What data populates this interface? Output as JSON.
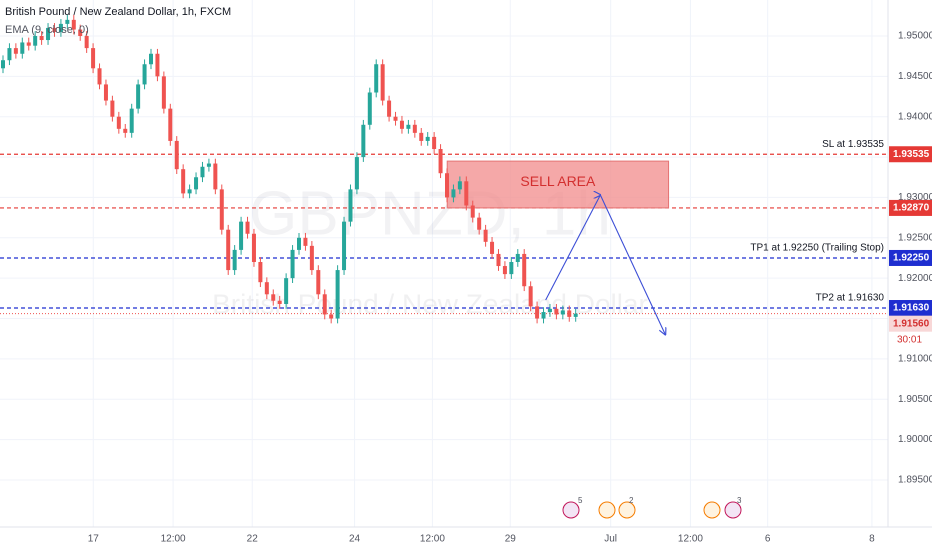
{
  "chart_data": {
    "type": "candlestick",
    "title": "British Pound / New Zealand Dollar, 1h, FXCM",
    "indicator": "EMA (9, close, 0)",
    "watermark": "GBPNZD, 1h",
    "watermark_subtitle": "British Pound / New Zealand Dollar",
    "xlim": [
      0,
      138
    ],
    "ylim": [
      1.88917,
      1.95446
    ],
    "xticks": [
      {
        "value": 14.5,
        "label": "17"
      },
      {
        "value": 26.9,
        "label": "12:00"
      },
      {
        "value": 39.2,
        "label": "22"
      },
      {
        "value": 55.1,
        "label": "24"
      },
      {
        "value": 67.2,
        "label": "12:00"
      },
      {
        "value": 79.3,
        "label": "29"
      },
      {
        "value": 94.9,
        "label": "Jul"
      },
      {
        "value": 107.3,
        "label": "12:00"
      },
      {
        "value": 119.3,
        "label": "6"
      },
      {
        "value": 135.5,
        "label": "8"
      }
    ],
    "yticks": [
      {
        "value": 1.95,
        "label": "1.95000"
      },
      {
        "value": 1.945,
        "label": "1.94500"
      },
      {
        "value": 1.94,
        "label": "1.94000"
      },
      {
        "value": 1.935,
        "label": "1.93500"
      },
      {
        "value": 1.93,
        "label": "1.93000"
      },
      {
        "value": 1.925,
        "label": "1.92500"
      },
      {
        "value": 1.92,
        "label": "1.92000"
      },
      {
        "value": 1.915,
        "label": "1.91500"
      },
      {
        "value": 1.91,
        "label": "1.91000"
      },
      {
        "value": 1.905,
        "label": "1.90500"
      },
      {
        "value": 1.9,
        "label": "1.90000"
      },
      {
        "value": 1.895,
        "label": "1.89500"
      }
    ],
    "grid": true,
    "up_color": "#26a69a",
    "down_color": "#ef5350",
    "candles": [
      [
        1.946,
        1.9476,
        1.9454,
        1.947
      ],
      [
        1.947,
        1.9491,
        1.9464,
        1.9485
      ],
      [
        1.9485,
        1.9491,
        1.9472,
        1.9478
      ],
      [
        1.9478,
        1.9498,
        1.9472,
        1.9492
      ],
      [
        1.9492,
        1.9498,
        1.9482,
        1.9488
      ],
      [
        1.9488,
        1.9506,
        1.9482,
        1.95
      ],
      [
        1.95,
        1.9506,
        1.9489,
        1.9495
      ],
      [
        1.9495,
        1.9516,
        1.9489,
        1.951
      ],
      [
        1.951,
        1.9516,
        1.9499,
        1.9505
      ],
      [
        1.9505,
        1.9521,
        1.9499,
        1.9515
      ],
      [
        1.9515,
        1.9526,
        1.9509,
        1.952
      ],
      [
        1.952,
        1.9526,
        1.9502,
        1.9508
      ],
      [
        1.9508,
        1.9514,
        1.9494,
        1.95
      ],
      [
        1.95,
        1.9506,
        1.9479,
        1.9485
      ],
      [
        1.9485,
        1.9491,
        1.9454,
        1.946
      ],
      [
        1.946,
        1.9466,
        1.9434,
        1.944
      ],
      [
        1.944,
        1.9446,
        1.9414,
        1.942
      ],
      [
        1.942,
        1.9426,
        1.9394,
        1.94
      ],
      [
        1.94,
        1.9406,
        1.9379,
        1.9385
      ],
      [
        1.9385,
        1.9391,
        1.9374,
        1.938
      ],
      [
        1.938,
        1.9416,
        1.9374,
        1.941
      ],
      [
        1.941,
        1.9446,
        1.9404,
        1.944
      ],
      [
        1.944,
        1.9471,
        1.9434,
        1.9465
      ],
      [
        1.9465,
        1.9484,
        1.9459,
        1.9478
      ],
      [
        1.9478,
        1.9484,
        1.9444,
        1.945
      ],
      [
        1.945,
        1.9456,
        1.9404,
        1.941
      ],
      [
        1.941,
        1.9416,
        1.9364,
        1.937
      ],
      [
        1.937,
        1.9376,
        1.9329,
        1.9335
      ],
      [
        1.9335,
        1.9341,
        1.9299,
        1.9305
      ],
      [
        1.9305,
        1.9316,
        1.9299,
        1.931
      ],
      [
        1.931,
        1.9331,
        1.9304,
        1.9325
      ],
      [
        1.9325,
        1.9344,
        1.9319,
        1.9338
      ],
      [
        1.9338,
        1.9348,
        1.9332,
        1.9342
      ],
      [
        1.9342,
        1.9348,
        1.9304,
        1.931
      ],
      [
        1.931,
        1.9316,
        1.9254,
        1.926
      ],
      [
        1.926,
        1.9266,
        1.9204,
        1.921
      ],
      [
        1.921,
        1.9241,
        1.9204,
        1.9235
      ],
      [
        1.9235,
        1.9276,
        1.9229,
        1.927
      ],
      [
        1.927,
        1.9276,
        1.9249,
        1.9255
      ],
      [
        1.9255,
        1.9261,
        1.9214,
        1.922
      ],
      [
        1.922,
        1.9226,
        1.9189,
        1.9195
      ],
      [
        1.9195,
        1.9201,
        1.9174,
        1.918
      ],
      [
        1.918,
        1.9186,
        1.9166,
        1.9172
      ],
      [
        1.9172,
        1.9178,
        1.9162,
        1.9168
      ],
      [
        1.9168,
        1.9206,
        1.9162,
        1.92
      ],
      [
        1.92,
        1.9241,
        1.9194,
        1.9235
      ],
      [
        1.9235,
        1.9256,
        1.9229,
        1.925
      ],
      [
        1.925,
        1.9256,
        1.9234,
        1.924
      ],
      [
        1.924,
        1.9246,
        1.9204,
        1.921
      ],
      [
        1.921,
        1.9216,
        1.9174,
        1.918
      ],
      [
        1.918,
        1.9186,
        1.9149,
        1.9155
      ],
      [
        1.9155,
        1.9161,
        1.9144,
        1.915
      ],
      [
        1.915,
        1.9216,
        1.9144,
        1.921
      ],
      [
        1.921,
        1.9276,
        1.9204,
        1.927
      ],
      [
        1.927,
        1.9316,
        1.9264,
        1.931
      ],
      [
        1.931,
        1.9356,
        1.9304,
        1.935
      ],
      [
        1.935,
        1.9396,
        1.9344,
        1.939
      ],
      [
        1.939,
        1.9436,
        1.9384,
        1.943
      ],
      [
        1.943,
        1.9471,
        1.9424,
        1.9465
      ],
      [
        1.9465,
        1.9471,
        1.9414,
        1.942
      ],
      [
        1.942,
        1.9426,
        1.9394,
        1.94
      ],
      [
        1.94,
        1.9406,
        1.9389,
        1.9395
      ],
      [
        1.9395,
        1.9401,
        1.9379,
        1.9385
      ],
      [
        1.9385,
        1.9396,
        1.9379,
        1.939
      ],
      [
        1.939,
        1.9396,
        1.9374,
        1.938
      ],
      [
        1.938,
        1.9386,
        1.9364,
        1.937
      ],
      [
        1.937,
        1.9381,
        1.9364,
        1.9375
      ],
      [
        1.9375,
        1.9381,
        1.9354,
        1.936
      ],
      [
        1.936,
        1.9366,
        1.9324,
        1.933
      ],
      [
        1.933,
        1.9336,
        1.9294,
        1.93
      ],
      [
        1.93,
        1.9316,
        1.9294,
        1.931
      ],
      [
        1.931,
        1.9326,
        1.9304,
        1.932
      ],
      [
        1.932,
        1.9326,
        1.9284,
        1.929
      ],
      [
        1.929,
        1.9296,
        1.9269,
        1.9275
      ],
      [
        1.9275,
        1.9281,
        1.9254,
        1.926
      ],
      [
        1.926,
        1.9266,
        1.9239,
        1.9245
      ],
      [
        1.9245,
        1.9251,
        1.9224,
        1.923
      ],
      [
        1.923,
        1.9236,
        1.9209,
        1.9215
      ],
      [
        1.9215,
        1.9221,
        1.9199,
        1.9205
      ],
      [
        1.9205,
        1.9226,
        1.9199,
        1.922
      ],
      [
        1.922,
        1.9236,
        1.9214,
        1.923
      ],
      [
        1.923,
        1.9236,
        1.9184,
        1.919
      ],
      [
        1.919,
        1.9196,
        1.9159,
        1.9165
      ],
      [
        1.9165,
        1.9171,
        1.9144,
        1.915
      ],
      [
        1.915,
        1.9164,
        1.9144,
        1.9158
      ],
      [
        1.9158,
        1.9168,
        1.9152,
        1.9162
      ],
      [
        1.9162,
        1.9168,
        1.9149,
        1.9155
      ],
      [
        1.9155,
        1.9166,
        1.9149,
        1.916
      ],
      [
        1.916,
        1.9166,
        1.9146,
        1.9152
      ],
      [
        1.9152,
        1.9162,
        1.9146,
        1.9156
      ]
    ],
    "levels": [
      {
        "price": 1.93535,
        "text": "SL at 1.93535",
        "color": "#e53935"
      },
      {
        "price": 1.9287,
        "price_label": "1.92870",
        "color": "#e53935"
      },
      {
        "price": 1.9225,
        "price_label": "1.92250",
        "text": "TP1 at 1.92250 (Trailing Stop)",
        "color": "#1e2ed0"
      },
      {
        "price": 1.9163,
        "price_label": "1.91630",
        "text": "TP2 at 1.91630",
        "color": "#1e2ed0"
      }
    ],
    "last_price": {
      "price": 1.9156,
      "price_label": "1.91560",
      "countdown": "30:01",
      "color": "#ef5350"
    },
    "sell_area": {
      "text": "SELL AREA",
      "x": [
        69.5,
        103.9
      ],
      "y": [
        1.9287,
        1.9345
      ],
      "color": "#f28b8b"
    },
    "arrow": {
      "x": [
        84.8,
        93.3,
        103.4
      ],
      "y": [
        1.9173,
        1.9303,
        1.913
      ],
      "color": "#3d4fd6"
    },
    "event_counts": [
      5,
      2,
      3
    ]
  }
}
